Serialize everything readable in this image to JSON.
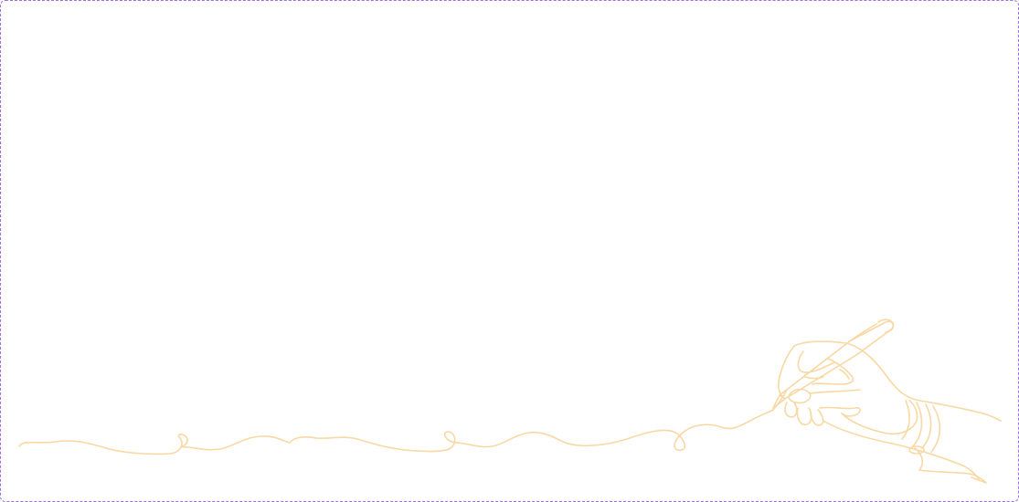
{
  "canvas": {
    "border_color": "#9d6fe0",
    "background_color": "#ffffff"
  },
  "illustration": {
    "icon": "hand-writing-pen-line-art-icon",
    "stroke_color": "#f8d8a3"
  }
}
